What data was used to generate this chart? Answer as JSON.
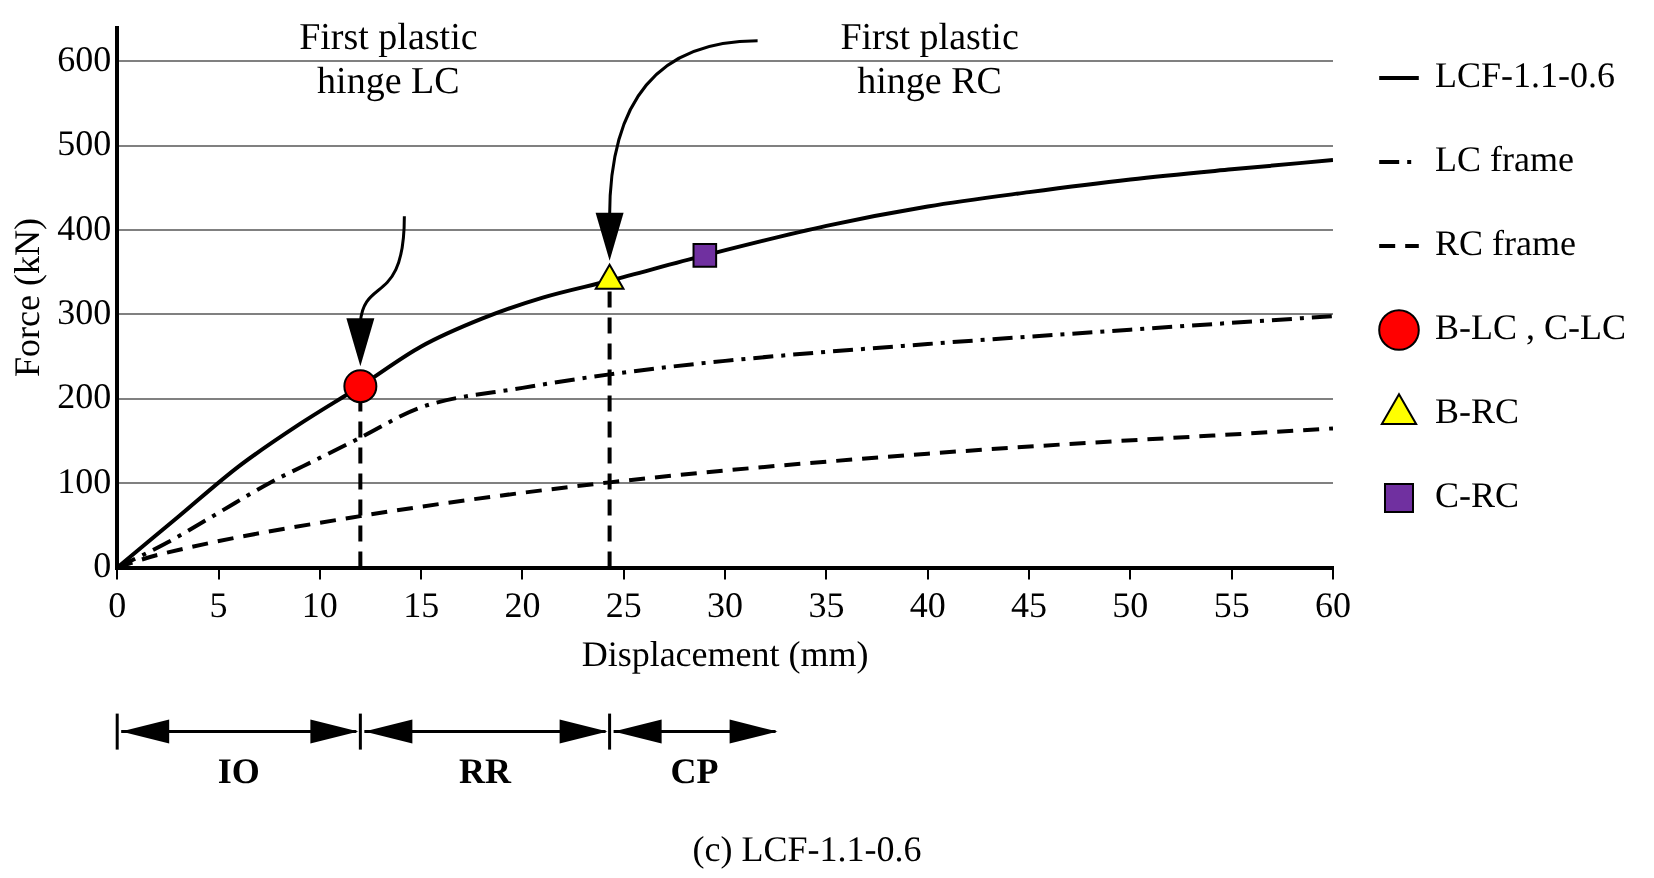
{
  "chart_data": {
    "type": "line",
    "xlabel": "Displacement (mm)",
    "ylabel": "Force (kN)",
    "xlim": [
      0,
      60
    ],
    "xticks": [
      0,
      5,
      10,
      15,
      20,
      25,
      30,
      35,
      40,
      45,
      50,
      55,
      60
    ],
    "ylim": [
      0,
      640
    ],
    "yticks": [
      0,
      100,
      200,
      300,
      400,
      500,
      600
    ],
    "grid": "y",
    "legend": "right",
    "marker": "none",
    "series": [
      {
        "name": "LCF-1.1-0.6",
        "type": "line",
        "color": "#000000",
        "line_style": "solid",
        "x": [
          0,
          3,
          6,
          9,
          12,
          15,
          18,
          21,
          24.3,
          29,
          35,
          40,
          45,
          50,
          55,
          60
        ],
        "values": [
          0,
          60,
          120,
          170,
          215,
          262,
          295,
          320,
          340,
          370,
          405,
          428,
          445,
          460,
          472,
          483
        ]
      },
      {
        "name": "LC frame",
        "type": "line",
        "color": "#000000",
        "line_style": "dashdot",
        "x": [
          0,
          2.5,
          5,
          7.5,
          10,
          12,
          15,
          20,
          24.3,
          30,
          40,
          50,
          60
        ],
        "values": [
          0,
          30,
          65,
          100,
          130,
          154,
          190,
          213,
          229,
          245,
          265,
          282,
          298
        ]
      },
      {
        "name": "RC frame",
        "type": "line",
        "color": "#000000",
        "line_style": "dashed",
        "x": [
          0,
          2,
          12,
          24.3,
          40,
          60
        ],
        "values": [
          0,
          15,
          61,
          101,
          135,
          165
        ]
      },
      {
        "name": "B-LC , C-LC",
        "type": "scatter",
        "marker": "circle",
        "color": "#ff0000",
        "x": [
          12
        ],
        "values": [
          215
        ]
      },
      {
        "name": "B-RC",
        "type": "scatter",
        "marker": "triangle",
        "color": "#ffff00",
        "x": [
          24.3
        ],
        "values": [
          340
        ]
      },
      {
        "name": "C-RC",
        "type": "scatter",
        "marker": "square",
        "color": "#7030a0",
        "x": [
          29
        ],
        "values": [
          370
        ]
      }
    ],
    "ref_lines": [
      {
        "axis": "x",
        "value": 12,
        "line_style": "dashed",
        "color": "#000000"
      },
      {
        "axis": "x",
        "value": 24.3,
        "line_style": "dashed",
        "color": "#000000"
      }
    ],
    "annotations": [
      "First plastic\nhinge LC",
      "First plastic\nhinge RC",
      "IO",
      "RR",
      "CP",
      "(c) LCF-1.1-0.6"
    ]
  }
}
